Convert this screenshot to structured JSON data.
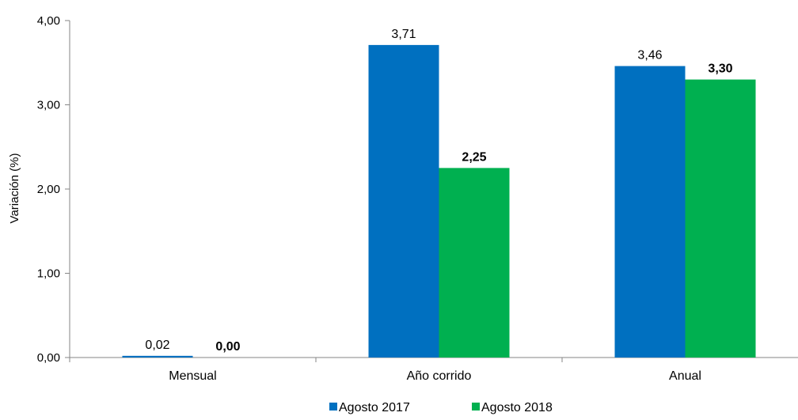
{
  "chart_data": {
    "type": "bar",
    "title": "",
    "xlabel": "",
    "ylabel": "Variación (%)",
    "ylim": [
      0,
      4
    ],
    "yticks": [
      "0,00",
      "1,00",
      "2,00",
      "3,00",
      "4,00"
    ],
    "categories": [
      "Mensual",
      "Año corrido",
      "Anual"
    ],
    "series": [
      {
        "name": "Agosto 2017",
        "color": "#0070C0",
        "values": [
          0.02,
          3.71,
          3.46
        ],
        "labels": [
          "0,02",
          "3,71",
          "3,46"
        ],
        "bold_labels": false
      },
      {
        "name": "Agosto 2018",
        "color": "#00B050",
        "values": [
          0.0,
          2.25,
          3.3
        ],
        "labels": [
          "0,00",
          "2,25",
          "3,30"
        ],
        "bold_labels": true
      }
    ],
    "grid": false,
    "legend_position": "bottom"
  }
}
